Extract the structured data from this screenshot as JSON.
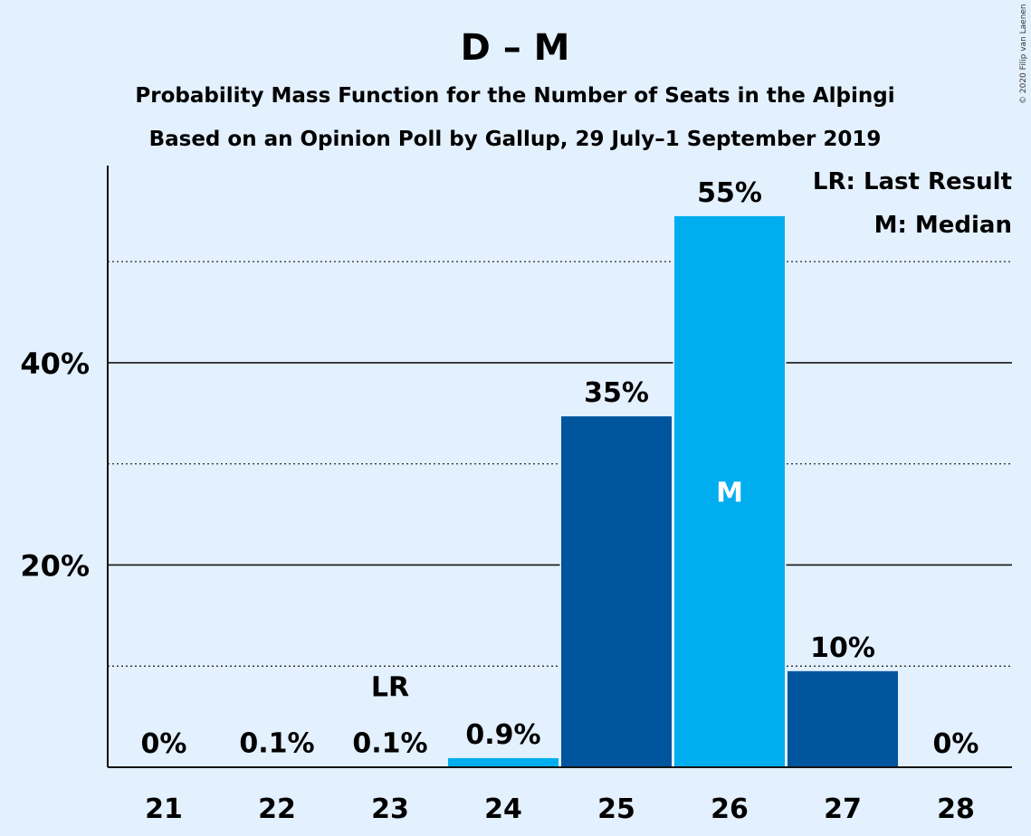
{
  "chart_data": {
    "type": "bar",
    "title": "D – M",
    "subtitle": "Probability Mass Function for the Number of Seats in the Alþingi",
    "subtitle2": "Based on an Opinion Poll by Gallup, 29 July–1 September 2019",
    "copyright": "© 2020 Filip van Laenen",
    "categories": [
      "21",
      "22",
      "23",
      "24",
      "25",
      "26",
      "27",
      "28"
    ],
    "values": [
      0,
      0.1,
      0.1,
      0.9,
      35,
      55,
      10,
      0
    ],
    "bar_values": [
      0,
      0.05,
      0.05,
      0.9,
      34.7,
      54.5,
      9.5,
      0
    ],
    "data_labels": [
      "0%",
      "0.1%",
      "0.1%",
      "0.9%",
      "35%",
      "55%",
      "10%",
      "0%"
    ],
    "y_ticks": [
      {
        "value": 20,
        "label": "20%"
      },
      {
        "value": 40,
        "label": "40%"
      }
    ],
    "ylim": [
      0,
      59.5
    ],
    "minor_gridlines": [
      10,
      30,
      50
    ],
    "major_gridlines": [
      20,
      40
    ],
    "last_result_index": 2,
    "last_result_label": "LR",
    "median_index": 5,
    "median_label": "M",
    "legend": [
      "LR: Last Result",
      "M: Median"
    ],
    "colors": {
      "background": "#e3f0fd",
      "bar_dark": "#01559f",
      "bar_light": "#00aeef",
      "text": "#141414"
    }
  }
}
